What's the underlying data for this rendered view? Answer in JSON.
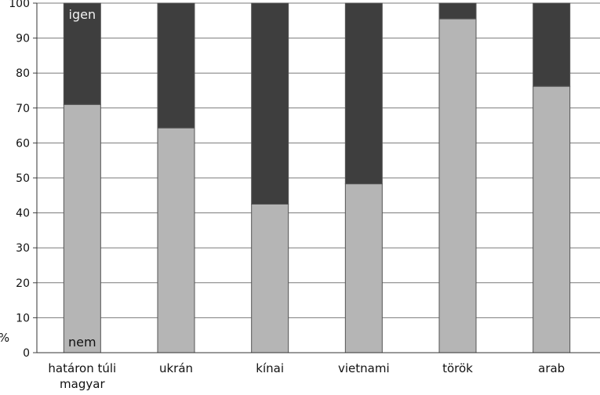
{
  "chart_data": {
    "type": "bar",
    "stacked": true,
    "categories": [
      [
        "határon túli",
        "magyar"
      ],
      [
        "ukrán"
      ],
      [
        "kínai"
      ],
      [
        "vietnami"
      ],
      [
        "török"
      ],
      [
        "arab"
      ]
    ],
    "series": [
      {
        "name": "nem",
        "color": "#b5b5b5",
        "values": [
          71,
          64.3,
          42.5,
          48.3,
          95.5,
          76.2
        ]
      },
      {
        "name": "igen",
        "color": "#3e3e3e",
        "values": [
          29,
          35.7,
          57.5,
          51.7,
          4.5,
          23.8
        ]
      }
    ],
    "ylabel": "%",
    "ylim": [
      0,
      100
    ],
    "yticks": [
      0,
      10,
      20,
      30,
      40,
      50,
      60,
      70,
      80,
      90,
      100
    ],
    "grid": true,
    "annotations": [
      {
        "text": "igen",
        "series": "igen",
        "category_index": 0,
        "placement": "top"
      },
      {
        "text": "nem",
        "series": "nem",
        "category_index": 0,
        "placement": "bottom"
      }
    ]
  }
}
